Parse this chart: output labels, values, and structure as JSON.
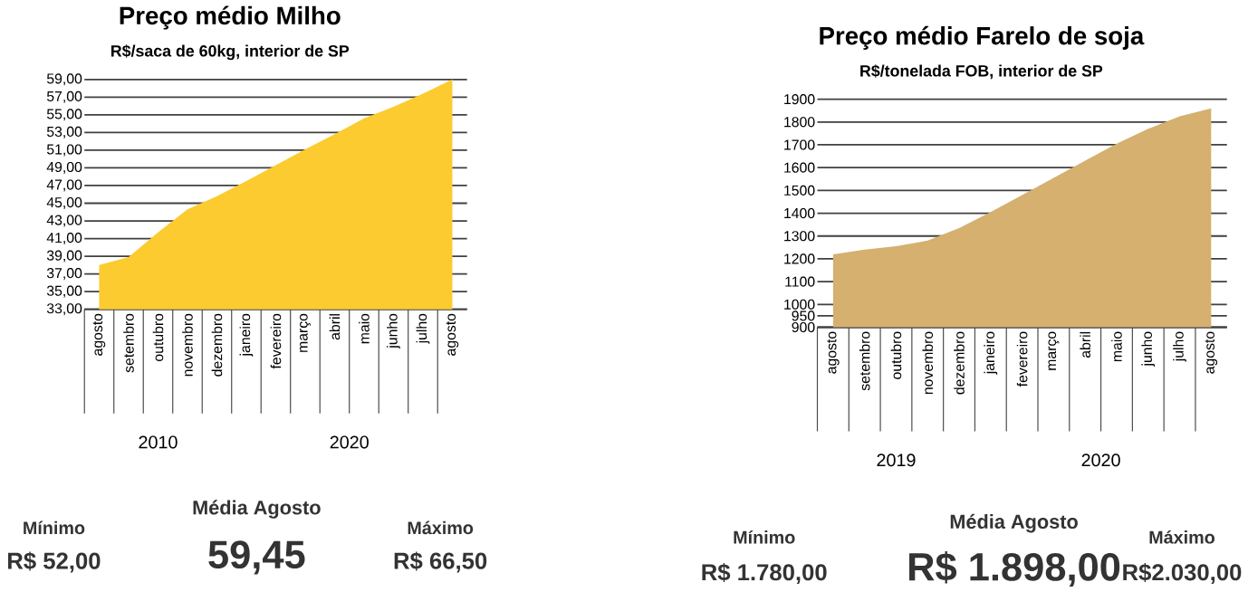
{
  "chart_data": [
    {
      "type": "area",
      "title": "Preço médio Milho",
      "subtitle": "R$/saca de 60kg, interior de SP",
      "categories": [
        "agosto",
        "setembro",
        "outubro",
        "novembro",
        "dezembro",
        "janeiro",
        "fevereiro",
        "março",
        "abril",
        "maio",
        "junho",
        "julho",
        "agosto"
      ],
      "values": [
        38.0,
        38.9,
        41.7,
        44.3,
        45.8,
        47.5,
        49.3,
        51.1,
        52.8,
        54.6,
        55.9,
        57.4,
        59.0
      ],
      "color": "#fccb2f",
      "grid": "y",
      "ylim": [
        33,
        59
      ],
      "yticks": [
        {
          "value": 33,
          "label": "33,00"
        },
        {
          "value": 35,
          "label": "35,00"
        },
        {
          "value": 37,
          "label": "37,00"
        },
        {
          "value": 39,
          "label": "39,00"
        },
        {
          "value": 41,
          "label": "41,00"
        },
        {
          "value": 43,
          "label": "43,00"
        },
        {
          "value": 45,
          "label": "45,00"
        },
        {
          "value": 47,
          "label": "47,00"
        },
        {
          "value": 49,
          "label": "49,00"
        },
        {
          "value": 51,
          "label": "51,00"
        },
        {
          "value": 53,
          "label": "53,00"
        },
        {
          "value": 55,
          "label": "55,00"
        },
        {
          "value": 57,
          "label": "57,00"
        },
        {
          "value": 59,
          "label": "59,00"
        }
      ],
      "annotations": [
        "2010",
        "2020",
        "Mínimo",
        "R$ 52,00",
        "Média Agosto",
        "59,45",
        "Máximo",
        "R$ 66,50"
      ]
    },
    {
      "type": "area",
      "title": "Preço médio Farelo de soja",
      "subtitle": "R$/tonelada FOB, interior de SP",
      "categories": [
        "agosto",
        "setembro",
        "outubro",
        "novembro",
        "dezembro",
        "janeiro",
        "fevereiro",
        "março",
        "abril",
        "maio",
        "junho",
        "julho",
        "agosto"
      ],
      "values": [
        1220,
        1240,
        1255,
        1280,
        1335,
        1405,
        1480,
        1555,
        1630,
        1705,
        1770,
        1825,
        1860
      ],
      "color": "#d5b06f",
      "grid": "y",
      "ylim": [
        900,
        1900
      ],
      "yticks": [
        900,
        950,
        1000,
        1100,
        1200,
        1300,
        1400,
        1500,
        1600,
        1700,
        1800,
        1900
      ],
      "annotations": [
        "2019",
        "2020",
        "Mínimo",
        "R$ 1.780,00",
        "Média  Agosto",
        "R$ 1.898,00",
        "Máximo",
        "R$2.030,00"
      ]
    }
  ]
}
